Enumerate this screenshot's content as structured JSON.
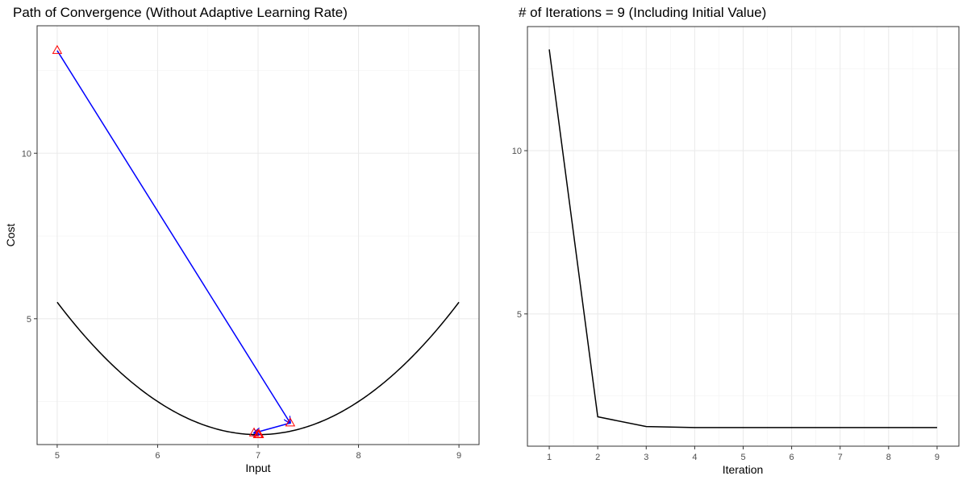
{
  "chart_data": [
    {
      "type": "line",
      "title": "Path of Convergence (Without Adaptive Learning Rate)",
      "xlabel": "Input",
      "ylabel": "Cost",
      "xlim": [
        4.8,
        9.2
      ],
      "ylim": [
        1.2,
        13.85
      ],
      "xticks": [
        5,
        6,
        7,
        8,
        9
      ],
      "yticks": [
        5,
        10
      ],
      "grid": true,
      "curve": {
        "function": "(x - 7)^2 + 1.5",
        "x_range": [
          5,
          9
        ]
      },
      "path_points": [
        {
          "x": 5.0,
          "y": 13.1
        },
        {
          "x": 7.32,
          "y": 1.85
        },
        {
          "x": 6.96,
          "y": 1.55
        },
        {
          "x": 7.01,
          "y": 1.5
        },
        {
          "x": 7.0,
          "y": 1.5
        },
        {
          "x": 7.0,
          "y": 1.5
        },
        {
          "x": 7.0,
          "y": 1.5
        },
        {
          "x": 7.0,
          "y": 1.5
        },
        {
          "x": 7.0,
          "y": 1.5
        }
      ],
      "marker_color": "#ff0000",
      "path_color": "#0000ff",
      "curve_color": "#000000"
    },
    {
      "type": "line",
      "title": "# of Iterations = 9 (Including Initial Value)",
      "xlabel": "Iteration",
      "ylabel": "",
      "xlim": [
        0.55,
        9.45
      ],
      "ylim": [
        0.95,
        13.8
      ],
      "xticks": [
        1,
        2,
        3,
        4,
        5,
        6,
        7,
        8,
        9
      ],
      "yticks": [
        5,
        10
      ],
      "grid": true,
      "x": [
        1,
        2,
        3,
        4,
        5,
        6,
        7,
        8,
        9
      ],
      "values": [
        13.1,
        1.85,
        1.55,
        1.52,
        1.52,
        1.52,
        1.52,
        1.52,
        1.52
      ],
      "line_color": "#000000"
    }
  ]
}
